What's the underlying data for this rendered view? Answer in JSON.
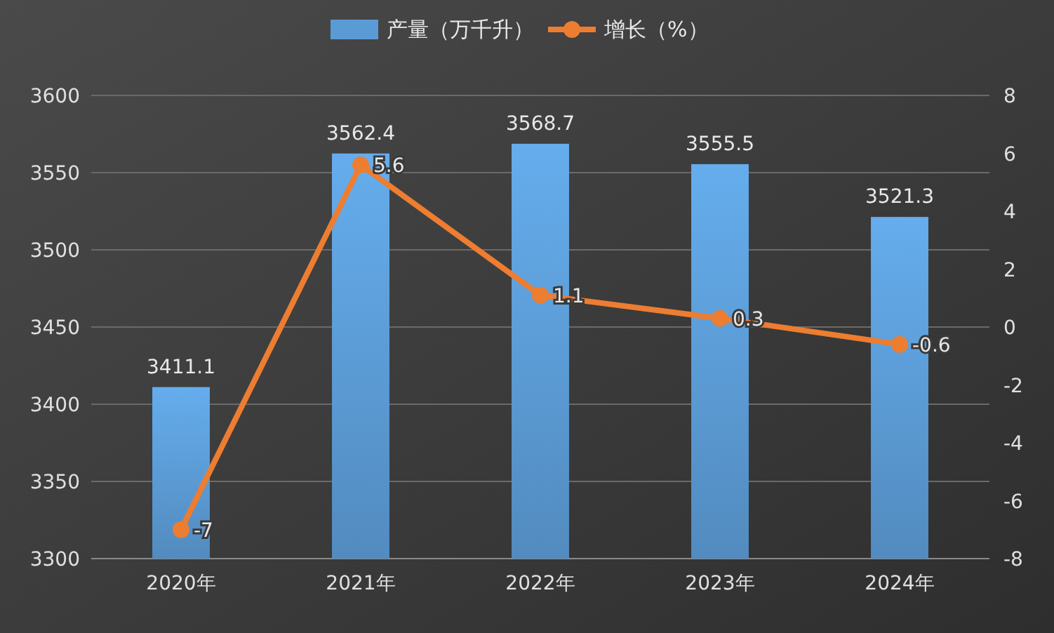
{
  "chart_data": {
    "type": "bar",
    "categories": [
      "2020年",
      "2021年",
      "2022年",
      "2023年",
      "2024年"
    ],
    "series": [
      {
        "name": "产量（万千升）",
        "color": "#5b9bd5",
        "values": [
          3411.1,
          3562.4,
          3568.7,
          3555.5,
          3521.3
        ]
      },
      {
        "name": "增长（%）",
        "type": "line",
        "axis": "y2",
        "color": "#ed7d31",
        "values": [
          -7,
          5.6,
          1.1,
          0.3,
          -0.6
        ]
      }
    ],
    "ylim": [
      3300,
      3600
    ],
    "yticks": [
      3300,
      3350,
      3400,
      3450,
      3500,
      3550,
      3600
    ],
    "y2lim": [
      -8,
      8
    ],
    "y2ticks": [
      -8,
      -6,
      -4,
      -2,
      0,
      2,
      4,
      6,
      8
    ],
    "grid": "y",
    "legend": "top",
    "marker": "circle",
    "data_labels": true
  }
}
